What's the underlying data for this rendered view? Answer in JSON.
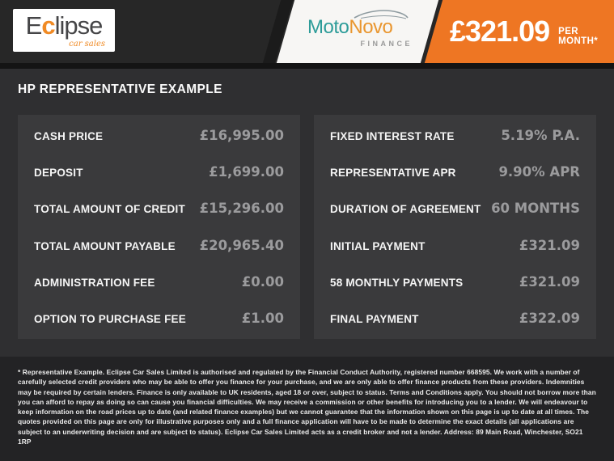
{
  "page_title": "HP REPRESENTATIVE EXAMPLE",
  "header": {
    "dealer_logo": {
      "brand_prefix": "E",
      "brand_c": "c",
      "brand_suffix": "lipse",
      "tagline": "car sales"
    },
    "finance_logo": {
      "part1": "Moto",
      "part2": "Novo",
      "subtitle": "FINANCE"
    },
    "price_banner": {
      "amount": "£321.09",
      "period": "PER MONTH*"
    }
  },
  "finance_tables": {
    "left": {
      "rows": [
        {
          "label": "CASH PRICE",
          "value": "£16,995.00"
        },
        {
          "label": "DEPOSIT",
          "value": "£1,699.00"
        },
        {
          "label": "TOTAL AMOUNT OF CREDIT",
          "value": "£15,296.00"
        },
        {
          "label": "TOTAL AMOUNT PAYABLE",
          "value": "£20,965.40"
        },
        {
          "label": "ADMINISTRATION FEE",
          "value": "£0.00"
        },
        {
          "label": "OPTION TO PURCHASE FEE",
          "value": "£1.00"
        }
      ]
    },
    "right": {
      "rows": [
        {
          "label": "FIXED INTEREST RATE",
          "value": "5.19% P.A."
        },
        {
          "label": "REPRESENTATIVE APR",
          "value": "9.90% APR"
        },
        {
          "label": "DURATION OF AGREEMENT",
          "value": "60 MONTHS"
        },
        {
          "label": "INITIAL PAYMENT",
          "value": "£321.09"
        },
        {
          "label": "58 MONTHLY PAYMENTS",
          "value": "£321.09"
        },
        {
          "label": "FINAL PAYMENT",
          "value": "£322.09"
        }
      ]
    }
  },
  "disclaimer": "* Representative Example. Eclipse Car Sales Limited is authorised and regulated by the Financial Conduct Authority, registered number 668595. We work with a number of carefully selected credit providers who may be able to offer you finance for your purchase, and we are only able to offer finance products from these providers. Indemnities may be required by certain lenders. Finance is only available to UK residents, aged 18 or over, subject to status. Terms and Conditions apply. You should not borrow more than you can afford to repay as doing so can cause you financial difficulties. We may receive a commission or other benefits for introducing you to a lender. We will endeavour to keep information on the road prices up to date (and related finance examples) but we cannot guarantee that the information shown on this page is up to date at all times. The quotes provided on this page are only for illustrative purposes only and a full finance application will have to be made to determine the exact details (all applications are subject to an underwriting decision and are subject to status). Eclipse Car Sales Limited acts as a credit broker and not a lender. Address: 89 Main Road, Winchester, SO21 1RP",
  "colors": {
    "accent_orange": "#ee7623",
    "moto_teal": "#2d9c99",
    "novo_gold": "#e9962f",
    "panel_bg": "#3a3a3c",
    "value_gray": "#9b9b9d"
  }
}
